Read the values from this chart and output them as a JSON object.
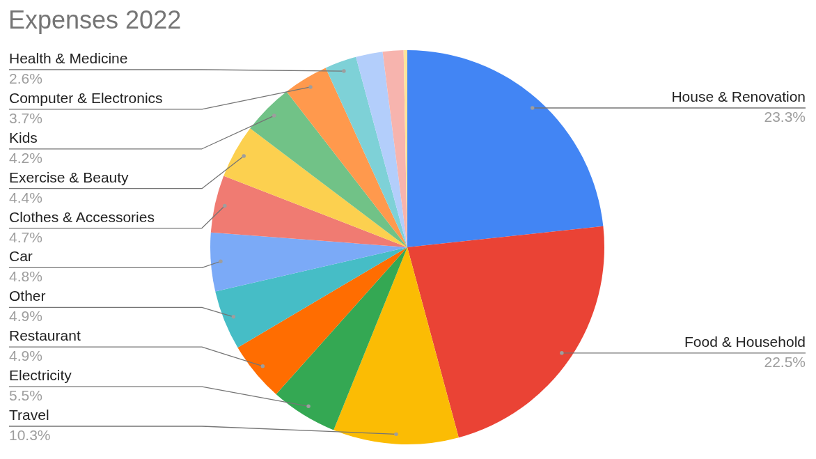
{
  "chart_data": {
    "type": "pie",
    "title": "Expenses 2022",
    "categories": [
      "House & Renovation",
      "Food & Household",
      "Travel",
      "Electricity",
      "Restaurant",
      "Other",
      "Car",
      "Clothes & Accessories",
      "Exercise & Beauty",
      "Kids",
      "Computer & Electronics",
      "Health & Medicine",
      null,
      null,
      null
    ],
    "values": [
      23.3,
      22.5,
      10.3,
      5.5,
      4.9,
      4.9,
      4.8,
      4.7,
      4.4,
      4.2,
      3.7,
      2.6,
      2.2,
      1.7,
      0.3
    ],
    "value_labels": [
      "23.3%",
      "22.5%",
      "10.3%",
      "5.5%",
      "4.9%",
      "4.9%",
      "4.8%",
      "4.7%",
      "4.4%",
      "4.2%",
      "3.7%",
      "2.6%",
      null,
      null,
      null
    ],
    "colors": [
      "#4285f4",
      "#ea4335",
      "#fbbc04",
      "#34a853",
      "#ff6d01",
      "#46bdc6",
      "#7baaf7",
      "#f07b72",
      "#fcd04f",
      "#71c287",
      "#ff994d",
      "#7ed1d7",
      "#b3cefb",
      "#f7b4ae",
      "#fde49b"
    ]
  }
}
